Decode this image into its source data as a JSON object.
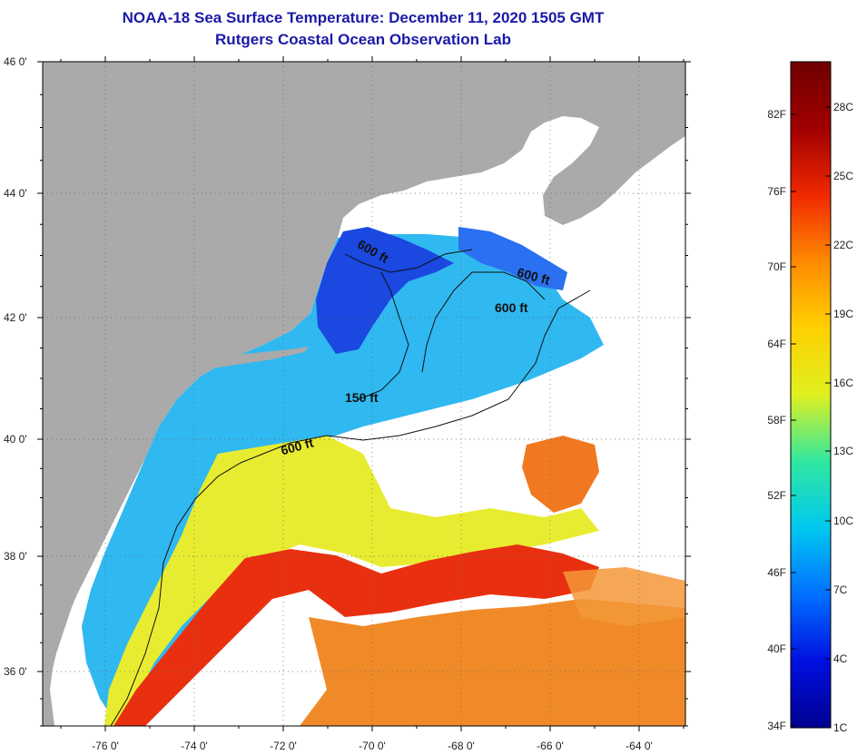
{
  "header": {
    "title": "NOAA-18 Sea Surface Temperature:  December 11, 2020 1505 GMT",
    "subtitle": "Rutgers Coastal Ocean Observation Lab"
  },
  "map": {
    "lon_ticks": [
      {
        "value": -76,
        "label": "-76 0'"
      },
      {
        "value": -74,
        "label": "-74 0'"
      },
      {
        "value": -72,
        "label": "-72 0'"
      },
      {
        "value": -70,
        "label": "-70 0'"
      },
      {
        "value": -68,
        "label": "-68 0'"
      },
      {
        "value": -66,
        "label": "-66 0'"
      },
      {
        "value": -64,
        "label": "-64 0'"
      }
    ],
    "lat_ticks": [
      {
        "value": 46,
        "label": "46 0'"
      },
      {
        "value": 44,
        "label": "44 0'"
      },
      {
        "value": 42,
        "label": "42 0'"
      },
      {
        "value": 40,
        "label": "40 0'"
      },
      {
        "value": 38,
        "label": "38 0'"
      },
      {
        "value": 36,
        "label": "36 0'"
      }
    ],
    "contour_labels": [
      "600 ft",
      "600 ft",
      "600 ft",
      "150 ft",
      "600 ft"
    ],
    "colors": {
      "land": "#aaaaaa",
      "cloud": "#ffffff"
    }
  },
  "colorbar": {
    "fahrenheit_labels": [
      "82F",
      "76F",
      "70F",
      "64F",
      "58F",
      "52F",
      "46F",
      "40F",
      "34F"
    ],
    "celsius_labels": [
      "28C",
      "25C",
      "22C",
      "19C",
      "16C",
      "13C",
      "10C",
      "7C",
      "4C",
      "1C"
    ],
    "gradient_colors": [
      "#000090",
      "#0010e0",
      "#0070ff",
      "#00c8f0",
      "#30e8a0",
      "#e0f020",
      "#ffd000",
      "#ff8a00",
      "#f02800",
      "#a00000",
      "#700000"
    ]
  }
}
